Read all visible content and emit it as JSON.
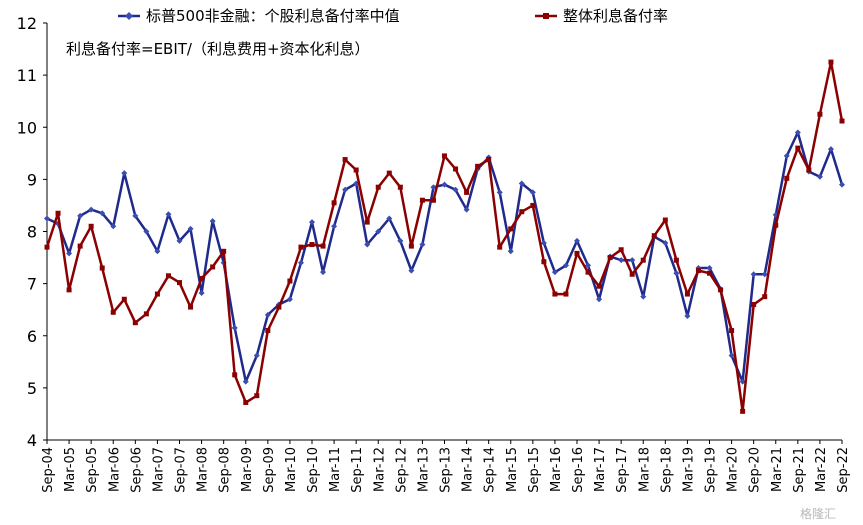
{
  "chart_data": {
    "type": "line",
    "annotation": "利息备付率=EBIT/（利息费用+资本化利息）",
    "ylim": [
      4,
      12
    ],
    "yticks": [
      4,
      5,
      6,
      7,
      8,
      9,
      10,
      11,
      12
    ],
    "xlim": [
      0,
      72
    ],
    "xtick_labels": [
      "Sep-04",
      "Mar-05",
      "Sep-05",
      "Mar-06",
      "Sep-06",
      "Mar-07",
      "Sep-07",
      "Mar-08",
      "Sep-08",
      "Mar-09",
      "Sep-09",
      "Mar-10",
      "Sep-10",
      "Mar-11",
      "Sep-11",
      "Mar-12",
      "Sep-12",
      "Mar-13",
      "Sep-13",
      "Mar-14",
      "Sep-14",
      "Mar-15",
      "Sep-15",
      "Mar-16",
      "Sep-16",
      "Mar-17",
      "Sep-17",
      "Mar-18",
      "Sep-18",
      "Mar-19",
      "Sep-19",
      "Mar-20",
      "Sep-20",
      "Mar-21",
      "Sep-21",
      "Mar-22",
      "Sep-22"
    ],
    "legend_position": "top",
    "series": [
      {
        "name": "标普500非金融：个股利息备付率中值",
        "color": "#1f2a8c",
        "marker": "diamond",
        "values": [
          8.25,
          8.15,
          7.58,
          8.3,
          8.42,
          8.35,
          8.1,
          9.12,
          8.3,
          8.0,
          7.62,
          8.33,
          7.82,
          8.05,
          6.82,
          8.2,
          7.4,
          6.15,
          5.12,
          5.62,
          6.4,
          6.6,
          6.7,
          7.4,
          8.18,
          7.22,
          8.1,
          8.8,
          8.92,
          7.75,
          8.0,
          8.25,
          7.82,
          7.25,
          7.75,
          8.85,
          8.9,
          8.8,
          8.42,
          9.2,
          9.42,
          8.75,
          7.62,
          8.92,
          8.75,
          7.78,
          7.22,
          7.35,
          7.82,
          7.35,
          6.7,
          7.52,
          7.45,
          7.45,
          6.75,
          7.9,
          7.78,
          7.2,
          6.38,
          7.3,
          7.3,
          6.9,
          5.62,
          5.12,
          7.18,
          7.18,
          8.32,
          9.45,
          9.9,
          9.15,
          9.05,
          9.58,
          8.9
        ]
      },
      {
        "name": "整体利息备付率",
        "color": "#8b0000",
        "marker": "square",
        "values": [
          7.7,
          8.35,
          6.88,
          7.72,
          8.1,
          7.3,
          6.45,
          6.7,
          6.25,
          6.42,
          6.8,
          7.15,
          7.02,
          6.55,
          7.1,
          7.32,
          7.62,
          5.25,
          4.72,
          4.85,
          6.1,
          6.55,
          7.05,
          7.7,
          7.75,
          7.72,
          8.55,
          9.38,
          9.18,
          8.18,
          8.85,
          9.12,
          8.85,
          7.72,
          8.6,
          8.6,
          9.45,
          9.2,
          8.75,
          9.25,
          9.38,
          7.7,
          8.05,
          8.38,
          8.5,
          7.42,
          6.8,
          6.8,
          7.58,
          7.22,
          6.95,
          7.5,
          7.65,
          7.18,
          7.45,
          7.92,
          8.22,
          7.45,
          6.8,
          7.25,
          7.2,
          6.88,
          6.1,
          4.55,
          6.6,
          6.75,
          8.12,
          9.02,
          9.6,
          9.18,
          10.25,
          11.25,
          10.12
        ]
      }
    ]
  },
  "watermark": "格隆汇"
}
